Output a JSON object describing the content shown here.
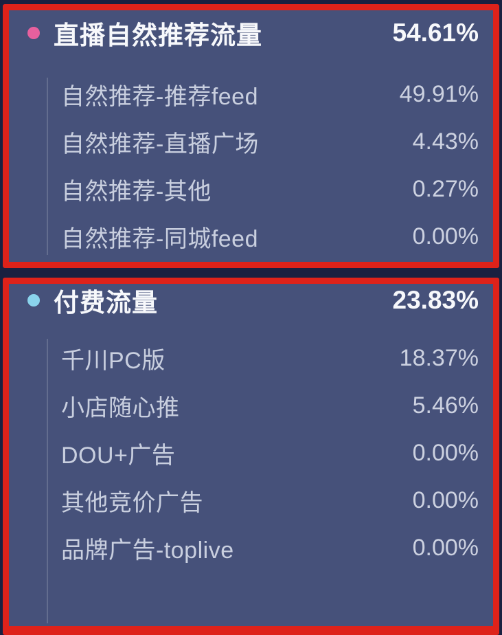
{
  "colors": {
    "page_background": "#1a2040",
    "panel_background": "#46517a",
    "highlight_border_red": "#de221a",
    "organic_bullet_pink": "#e7609e",
    "paid_bullet_cyan": "#8ad3ec",
    "header_text": "#f7f8fb",
    "sub_text": "#c9cfdf"
  },
  "sections": [
    {
      "title": "直播自然推荐流量",
      "value": "54.61%",
      "bullet": "pink-dot",
      "items": [
        {
          "label": "自然推荐-推荐feed",
          "value": "49.91%"
        },
        {
          "label": "自然推荐-直播广场",
          "value": "4.43%"
        },
        {
          "label": "自然推荐-其他",
          "value": "0.27%"
        },
        {
          "label": "自然推荐-同城feed",
          "value": "0.00%"
        }
      ]
    },
    {
      "title": "付费流量",
      "value": "23.83%",
      "bullet": "cyan-dot",
      "items": [
        {
          "label": "千川PC版",
          "value": "18.37%"
        },
        {
          "label": "小店随心推",
          "value": "5.46%"
        },
        {
          "label": "DOU+广告",
          "value": "0.00%"
        },
        {
          "label": "其他竞价广告",
          "value": "0.00%"
        },
        {
          "label": "品牌广告-toplive",
          "value": "0.00%"
        }
      ]
    }
  ]
}
